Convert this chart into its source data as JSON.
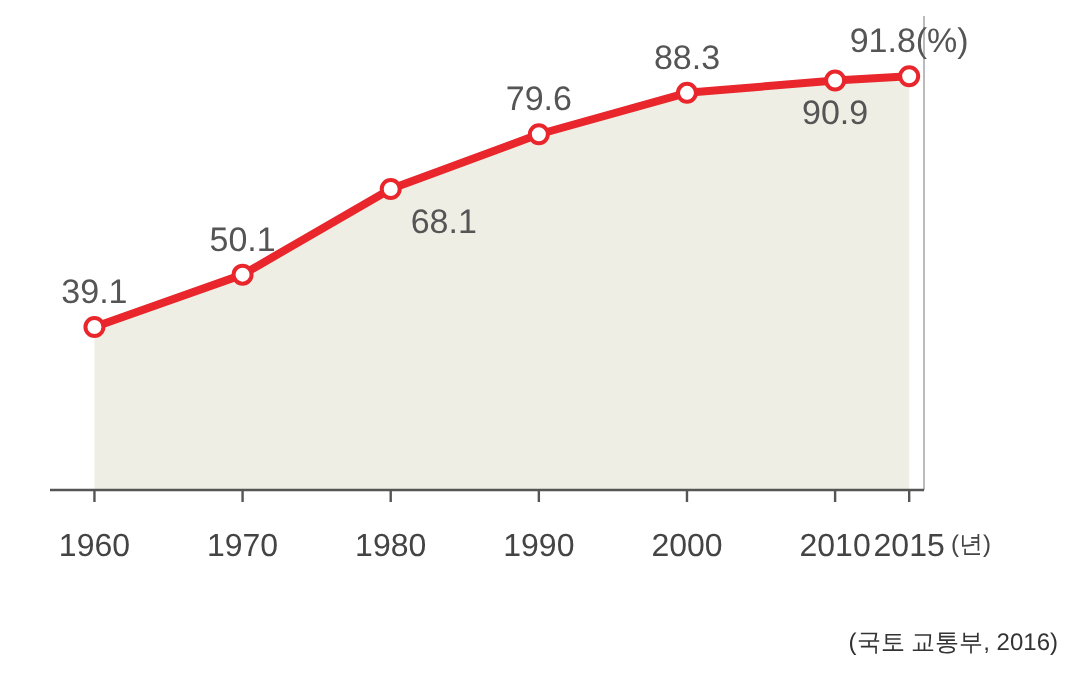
{
  "chart_data": {
    "type": "area",
    "x": [
      1960,
      1970,
      1980,
      1990,
      2000,
      2010,
      2015
    ],
    "series": [
      {
        "color": "#e8262c",
        "values": [
          39.1,
          50.1,
          68.1,
          79.6,
          88.3,
          90.9,
          91.8
        ],
        "value_labels": [
          "39.1",
          "50.1",
          "68.1",
          "79.6",
          "88.3",
          "90.9",
          "91.8(%)"
        ]
      }
    ],
    "xlim": [
      1957,
      2016
    ],
    "xticks": [
      1960,
      1970,
      1980,
      1990,
      2000,
      2010,
      2015
    ],
    "xlabel": "(년)",
    "marker": "circle",
    "annotations": [
      "(국토 교통부, 2016)"
    ]
  }
}
